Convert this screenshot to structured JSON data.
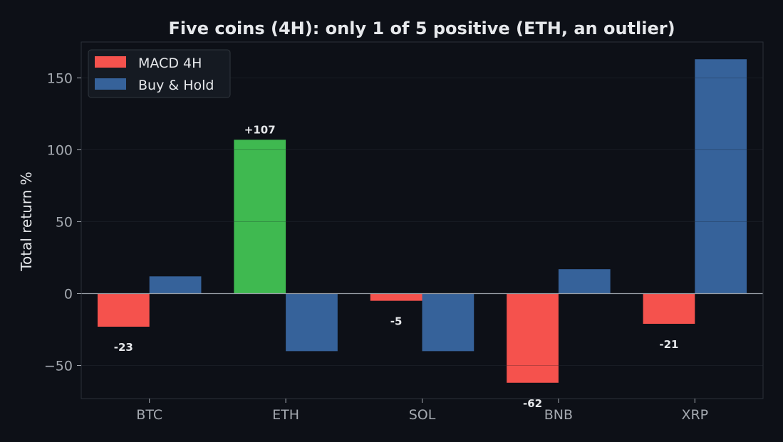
{
  "chart_data": {
    "type": "bar",
    "title": "Five coins (4H): only 1 of 5 positive (ETH, an outlier)",
    "xlabel": "",
    "ylabel": "Total return %",
    "ylim": [
      -73,
      175
    ],
    "yticks": [
      -50,
      0,
      50,
      100,
      150
    ],
    "ytick_labels": [
      "−50",
      "0",
      "50",
      "100",
      "150"
    ],
    "categories": [
      "BTC",
      "ETH",
      "SOL",
      "BNB",
      "XRP"
    ],
    "series": [
      {
        "name": "MACD 4H",
        "values": [
          -23,
          107,
          -5,
          -62,
          -21
        ],
        "data_labels": [
          "-23",
          "+107",
          "-5",
          "-62",
          "-21"
        ]
      },
      {
        "name": "Buy & Hold",
        "values": [
          12,
          -40,
          -40,
          17,
          163
        ]
      }
    ],
    "grid": true,
    "legend_position": "top-left",
    "colors": {
      "background": "#0d1017",
      "plot_border": "#2b3139",
      "grid": "#1c2129",
      "zero_line": "#9aa0a8",
      "text": "#e6e8eb",
      "tick_text": "#a4a9b0",
      "macd_negative": "#f5524d",
      "macd_positive": "#3fb950",
      "buy_hold": "#36629a",
      "legend_bg": "#151a22",
      "legend_border": "#30363d"
    }
  }
}
